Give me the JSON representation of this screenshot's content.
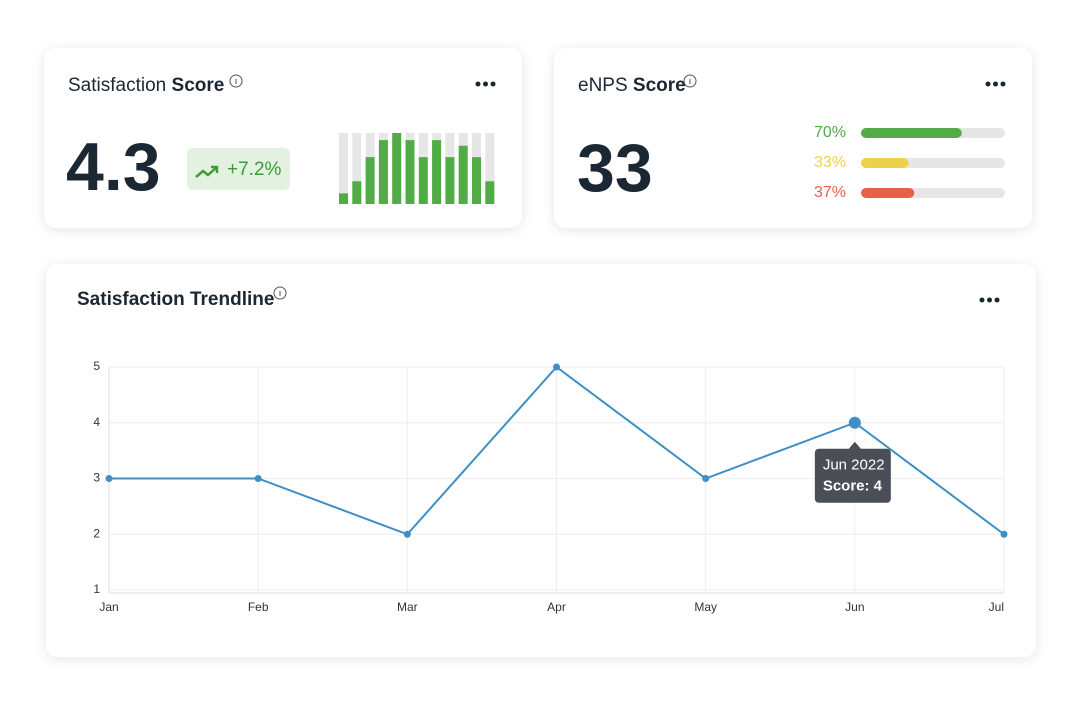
{
  "satisfaction_card": {
    "title_regular": "Satisfaction",
    "title_bold": "Score",
    "score": 4.3,
    "change": "+7.2%",
    "mini_chart": {
      "type": "bar",
      "values": [
        15,
        32,
        66,
        90,
        100,
        90,
        66,
        90,
        66,
        82,
        66,
        32
      ],
      "ylim": [
        0,
        100
      ],
      "color": "#52ac45",
      "track_color": "#e6e6e6"
    }
  },
  "enps_card": {
    "title_regular": "eNPS",
    "title_bold": "Score",
    "score": 33,
    "breakdown": {
      "type": "bar",
      "values": [
        70,
        33,
        37
      ],
      "value_labels": [
        "70%",
        "33%",
        "37%"
      ],
      "colors": [
        "#52ac45",
        "#ecd24c",
        "#e8604c"
      ],
      "xlim": [
        0,
        100
      ],
      "track_color": "#e6e6e6"
    }
  },
  "trendline_card": {
    "title": "Satisfaction Trendline",
    "chart_data": {
      "type": "line",
      "categories": [
        "Jan",
        "Feb",
        "Mar",
        "Apr",
        "May",
        "Jun",
        "Jul"
      ],
      "values": [
        3,
        3,
        2,
        5,
        3,
        4,
        2
      ],
      "color": "#3d8fc6",
      "ylim": [
        1,
        5
      ],
      "yticks": [
        1,
        2,
        3,
        4,
        5
      ],
      "grid": true,
      "tooltip": {
        "title": "Jun 2022",
        "text": "Score: 4"
      }
    }
  }
}
